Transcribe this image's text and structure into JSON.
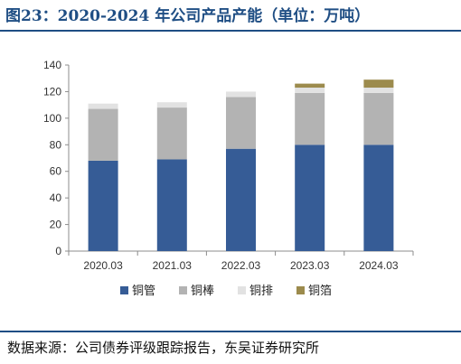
{
  "header": {
    "title": "图23：2020-2024 年公司产品产能（单位：万吨）"
  },
  "footer": {
    "source": "数据来源：公司债券评级跟踪报告，东吴证券研究所"
  },
  "colors": {
    "铜管": "#365c96",
    "铜棒": "#b3b3b3",
    "铜排": "#e2e2e2",
    "铜箔": "#9c8b4d",
    "title": "#1f4e84"
  },
  "chart_data": {
    "type": "bar",
    "stacked": true,
    "title": "",
    "xlabel": "",
    "ylabel": "",
    "ylim": [
      0,
      140
    ],
    "yticks": [
      0,
      20,
      40,
      60,
      80,
      100,
      120,
      140
    ],
    "grid": false,
    "legend": "bottom",
    "categories": [
      "2020.03",
      "2021.03",
      "2022.03",
      "2023.03",
      "2024.03"
    ],
    "series": [
      {
        "name": "铜管",
        "values": [
          68,
          69,
          77,
          80,
          80
        ]
      },
      {
        "name": "铜棒",
        "values": [
          39,
          39,
          39,
          39,
          39
        ]
      },
      {
        "name": "铜排",
        "values": [
          4,
          4,
          4,
          4,
          4
        ]
      },
      {
        "name": "铜箔",
        "values": [
          0,
          0,
          0,
          3,
          6
        ]
      }
    ]
  }
}
